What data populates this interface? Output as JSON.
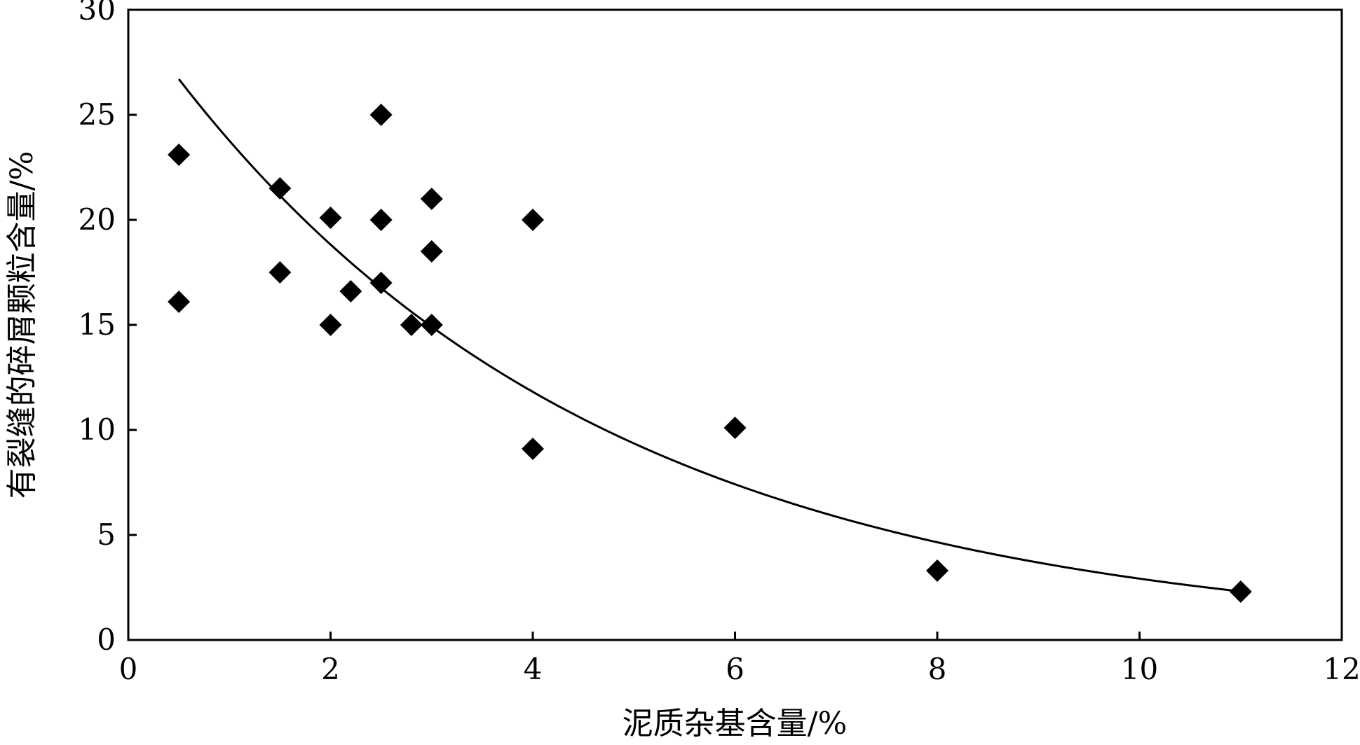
{
  "chart_data": {
    "type": "scatter",
    "xlabel": "泥质杂基含量/%",
    "ylabel": "有裂缝的碎屑颗粒含量/%",
    "xlim": [
      0,
      12
    ],
    "ylim": [
      0,
      30
    ],
    "xticks": [
      0,
      2,
      4,
      6,
      8,
      10,
      12
    ],
    "yticks": [
      0,
      5,
      10,
      15,
      20,
      25,
      30
    ],
    "grid": false,
    "marker": "diamond",
    "marker_color": "#000000",
    "line_color": "#000000",
    "points": [
      {
        "x": 0.5,
        "y": 23.1
      },
      {
        "x": 0.5,
        "y": 16.1
      },
      {
        "x": 1.5,
        "y": 21.5
      },
      {
        "x": 1.5,
        "y": 17.5
      },
      {
        "x": 2.0,
        "y": 20.1
      },
      {
        "x": 2.0,
        "y": 15.0
      },
      {
        "x": 2.2,
        "y": 16.6
      },
      {
        "x": 2.5,
        "y": 25.0
      },
      {
        "x": 2.5,
        "y": 20.0
      },
      {
        "x": 2.5,
        "y": 17.0
      },
      {
        "x": 2.8,
        "y": 15.0
      },
      {
        "x": 3.0,
        "y": 21.0
      },
      {
        "x": 3.0,
        "y": 18.5
      },
      {
        "x": 3.0,
        "y": 15.0
      },
      {
        "x": 4.0,
        "y": 20.0
      },
      {
        "x": 4.0,
        "y": 9.1
      },
      {
        "x": 6.0,
        "y": 10.1
      },
      {
        "x": 8.0,
        "y": 3.3
      },
      {
        "x": 11.0,
        "y": 2.3
      }
    ],
    "trendline": {
      "type": "exponential",
      "x_range": [
        0.5,
        11.0
      ],
      "a": 30.0,
      "b": -0.233
    }
  }
}
